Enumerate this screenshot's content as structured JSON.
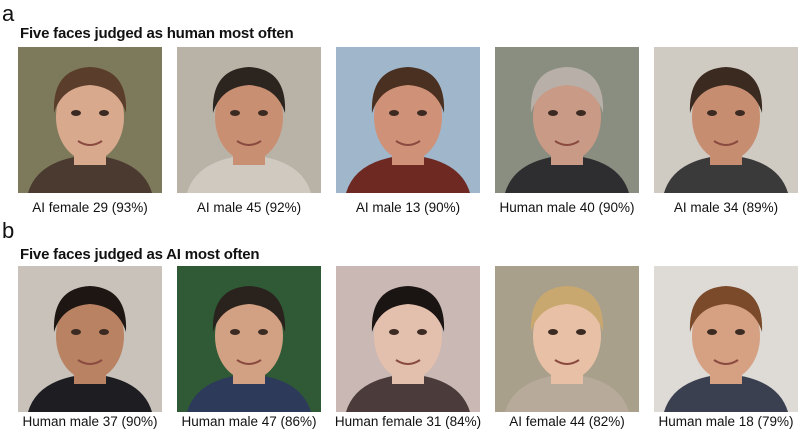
{
  "panels": [
    {
      "label": "a",
      "title": "Five faces judged as human most often",
      "faces": [
        {
          "caption": "AI female 29 (93%)"
        },
        {
          "caption": "AI male 45 (92%)"
        },
        {
          "caption": "AI male 13 (90%)"
        },
        {
          "caption": "Human male 40 (90%)"
        },
        {
          "caption": "AI male 34 (89%)"
        }
      ]
    },
    {
      "label": "b",
      "title": "Five faces judged as AI most often",
      "faces": [
        {
          "caption": "Human male 37 (90%)"
        },
        {
          "caption": "Human male 47 (86%)"
        },
        {
          "caption": "Human female 31 (84%)"
        },
        {
          "caption": "AI female 44 (82%)"
        },
        {
          "caption": "Human male 18 (79%)"
        }
      ]
    }
  ]
}
